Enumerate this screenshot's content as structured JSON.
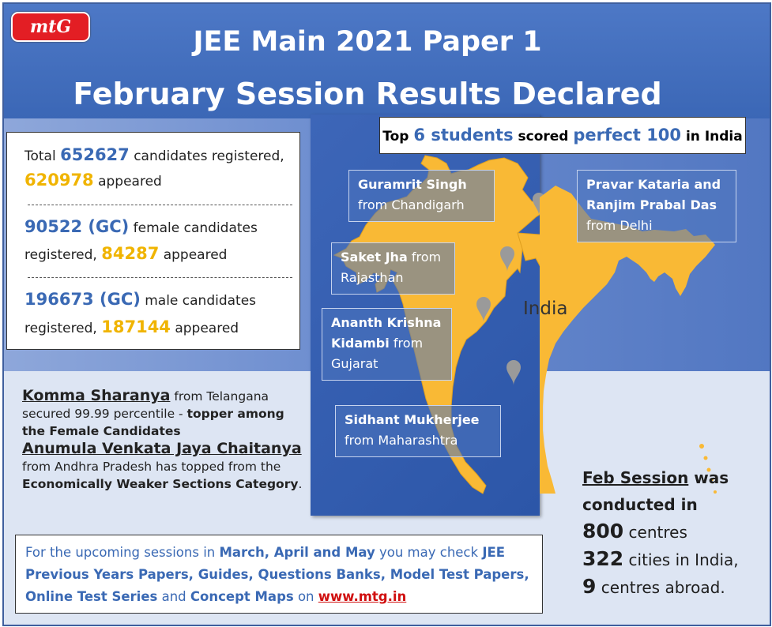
{
  "brand": {
    "logo_text": "mtG"
  },
  "header": {
    "title_line1": "JEE Main 2021 Paper 1",
    "title_line2": "February Session Results Declared"
  },
  "stats": {
    "total_prefix": "Total",
    "total_registered": "652627",
    "total_registered_suffix": "candidates registered,",
    "total_appeared": "620978",
    "total_appeared_suffix": "appeared",
    "female_count": "90522 (GC)",
    "female_suffix": "female candidates",
    "female_registered_word": "registered,",
    "female_appeared": "84287",
    "female_appeared_suffix": "appeared",
    "male_count": "196673 (GC)",
    "male_suffix": "male candidates",
    "male_registered_word": "registered,",
    "male_appeared": "187144",
    "male_appeared_suffix": "appeared"
  },
  "top_students": {
    "prefix": "Top",
    "count": "6 students",
    "middle": "scored",
    "score": "perfect 100",
    "suffix": "in India"
  },
  "map": {
    "country_label": "India",
    "map_color": "#f9b935",
    "pin_color": "#9a9a9a",
    "labels": [
      {
        "name": "Guramrit Singh",
        "place": "from Chandigarh"
      },
      {
        "name": "Pravar Kataria and",
        "name2": "Ranjim Prabal Das",
        "place": "from Delhi"
      },
      {
        "name": "Saket Jha",
        "place_inline": "from",
        "place": "Rajasthan"
      },
      {
        "name": "Ananth Krishna",
        "name2": "Kidambi",
        "place_inline": "from",
        "place": "Gujarat"
      },
      {
        "name": "Sidhant Mukherjee",
        "place": "from Maharashtra"
      }
    ]
  },
  "toppers": {
    "female_name": "Komma Sharanya",
    "female_from": "from Telangana",
    "female_text": "secured 99.99 percentile -",
    "female_bold": "topper among the Female Candidates",
    "ews_name": "Anumula Venkata Jaya Chaitanya",
    "ews_text": "from Andhra Pradesh has topped from the",
    "ews_bold": "Economically Weaker Sections Category",
    "ews_end": "."
  },
  "feb_session": {
    "heading": "Feb Session",
    "heading_rest": "was",
    "line2": "conducted in",
    "centres_num": "800",
    "centres_word": "centres",
    "cities_num": "322",
    "cities_word": "cities in India,",
    "abroad_num": "9",
    "abroad_word": "centres abroad."
  },
  "footer": {
    "t1": "For the upcoming sessions in",
    "b1": "March, April and May",
    "t2": "you may check",
    "b2": "JEE Previous Years Papers, Guides, Questions Banks, Model Test Papers, Online Test Series",
    "t3": "and",
    "b3": "Concept Maps",
    "t4": "on",
    "link": "www.mtg.in"
  },
  "colors": {
    "header_blue": "#3b67b6",
    "highlight_blue": "#3a69b4",
    "gold": "#f0b400",
    "brand_red": "#e31e24",
    "link_red": "#d01010"
  }
}
